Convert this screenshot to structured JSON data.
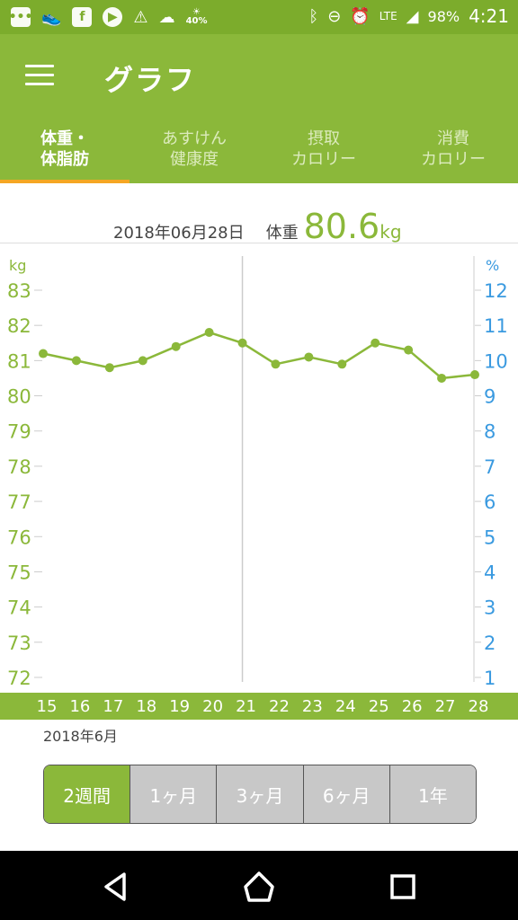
{
  "status_bar": {
    "battery": "98%",
    "time": "4:21",
    "network": "LTE",
    "icons": [
      "message-icon",
      "shoe-icon",
      "facebook-icon",
      "play-icon",
      "warning-icon",
      "weather-icon",
      "weather-percent-icon",
      "bluetooth-icon",
      "dnd-icon",
      "alarm-icon",
      "signal-icon",
      "battery-icon"
    ],
    "weather_percent": "40%"
  },
  "app_bar": {
    "title": "グラフ",
    "menu_icon": "hamburger-menu-icon"
  },
  "tabs": [
    {
      "label": "体重・\n体脂肪",
      "active": true
    },
    {
      "label": "あすけん\n健康度",
      "active": false
    },
    {
      "label": "摂取\nカロリー",
      "active": false
    },
    {
      "label": "消費\nカロリー",
      "active": false
    }
  ],
  "summary": {
    "date": "2018年06月28日",
    "label": "体重",
    "value": "80.6",
    "unit": "kg"
  },
  "chart_data": {
    "type": "line",
    "title": "",
    "xlabel": "",
    "ylabel": "kg",
    "y2label": "%",
    "x": [
      "15",
      "16",
      "17",
      "18",
      "19",
      "20",
      "21",
      "22",
      "23",
      "24",
      "25",
      "26",
      "27",
      "28"
    ],
    "series": [
      {
        "values": [
          81.2,
          81.0,
          80.8,
          81.0,
          81.4,
          81.8,
          81.5,
          80.9,
          81.1,
          80.9,
          81.5,
          81.3,
          80.5,
          80.6
        ]
      }
    ],
    "ylim": [
      72,
      83
    ],
    "y_ticks": [
      "72",
      "73",
      "74",
      "75",
      "76",
      "77",
      "78",
      "79",
      "80",
      "81",
      "82",
      "83"
    ],
    "y2lim": [
      1,
      12
    ],
    "y2_ticks": [
      "1",
      "2",
      "3",
      "4",
      "5",
      "6",
      "7",
      "8",
      "9",
      "10",
      "11",
      "12"
    ],
    "grid": false,
    "highlighted_x": "21",
    "colors": {
      "line": "#8bb83a",
      "y2": "#3a9ae0"
    }
  },
  "x_month_label": "2018年6月",
  "period_selector": [
    {
      "label": "2週間",
      "active": true
    },
    {
      "label": "1ヶ月",
      "active": false
    },
    {
      "label": "3ヶ月",
      "active": false
    },
    {
      "label": "6ヶ月",
      "active": false
    },
    {
      "label": "1年",
      "active": false
    }
  ],
  "nav_bar": {
    "items": [
      "back-icon",
      "home-icon",
      "recents-icon"
    ]
  }
}
